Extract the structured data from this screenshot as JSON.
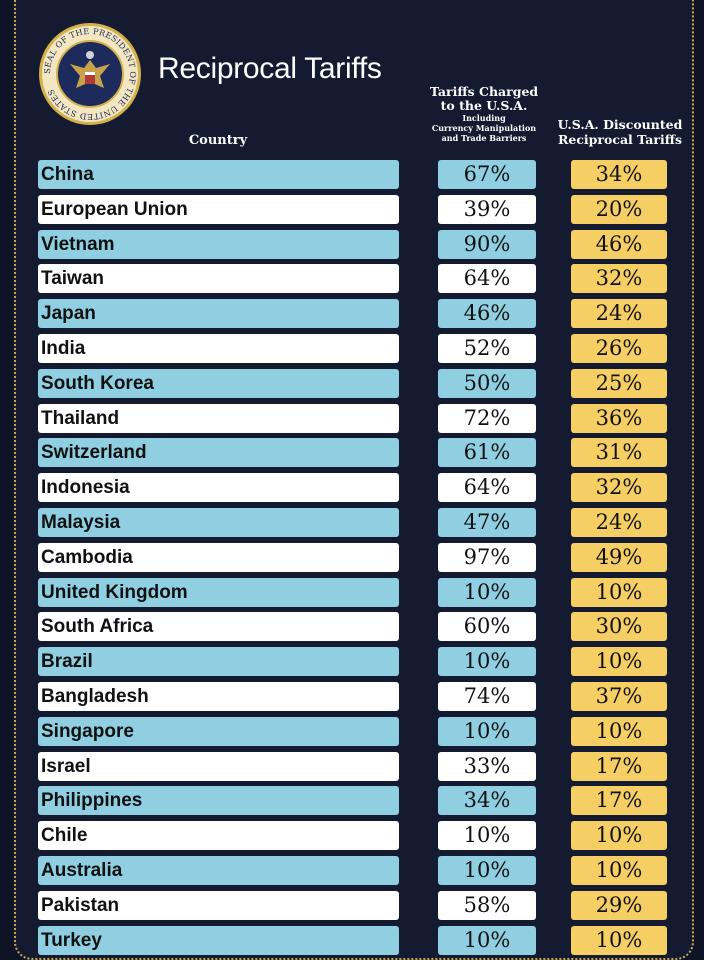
{
  "title": "Reciprocal Tariffs",
  "seal": {
    "ring_text": "SEAL OF THE PRESIDENT OF THE UNITED STATES",
    "colors": {
      "ring": "#d4b04a",
      "inner": "#1d2a5c",
      "eagle": "#c8a24a"
    }
  },
  "headers": {
    "country": "Country",
    "charged_line1": "Tariffs Charged",
    "charged_line2": "to the U.S.A.",
    "charged_sub1": "Including",
    "charged_sub2": "Currency Manipulation",
    "charged_sub3": "and Trade Barriers",
    "discounted_line1": "U.S.A. Discounted",
    "discounted_line2": "Reciprocal Tariffs"
  },
  "colors": {
    "background": "#141b30",
    "row_blue": "#8fcfe1",
    "row_white": "#ffffff",
    "discount_cell": "#f5cf63",
    "border_dots": "#c9a84a"
  },
  "chart_data": {
    "type": "table",
    "columns": [
      "Country",
      "Tariffs Charged to the U.S.A.",
      "U.S.A. Discounted Reciprocal Tariffs"
    ],
    "rows": [
      {
        "country": "China",
        "charged": "67%",
        "discounted": "34%"
      },
      {
        "country": "European Union",
        "charged": "39%",
        "discounted": "20%"
      },
      {
        "country": "Vietnam",
        "charged": "90%",
        "discounted": "46%"
      },
      {
        "country": "Taiwan",
        "charged": "64%",
        "discounted": "32%"
      },
      {
        "country": "Japan",
        "charged": "46%",
        "discounted": "24%"
      },
      {
        "country": "India",
        "charged": "52%",
        "discounted": "26%"
      },
      {
        "country": "South Korea",
        "charged": "50%",
        "discounted": "25%"
      },
      {
        "country": "Thailand",
        "charged": "72%",
        "discounted": "36%"
      },
      {
        "country": "Switzerland",
        "charged": "61%",
        "discounted": "31%"
      },
      {
        "country": "Indonesia",
        "charged": "64%",
        "discounted": "32%"
      },
      {
        "country": "Malaysia",
        "charged": "47%",
        "discounted": "24%"
      },
      {
        "country": "Cambodia",
        "charged": "97%",
        "discounted": "49%"
      },
      {
        "country": "United Kingdom",
        "charged": "10%",
        "discounted": "10%"
      },
      {
        "country": "South Africa",
        "charged": "60%",
        "discounted": "30%"
      },
      {
        "country": "Brazil",
        "charged": "10%",
        "discounted": "10%"
      },
      {
        "country": "Bangladesh",
        "charged": "74%",
        "discounted": "37%"
      },
      {
        "country": "Singapore",
        "charged": "10%",
        "discounted": "10%"
      },
      {
        "country": "Israel",
        "charged": "33%",
        "discounted": "17%"
      },
      {
        "country": "Philippines",
        "charged": "34%",
        "discounted": "17%"
      },
      {
        "country": "Chile",
        "charged": "10%",
        "discounted": "10%"
      },
      {
        "country": "Australia",
        "charged": "10%",
        "discounted": "10%"
      },
      {
        "country": "Pakistan",
        "charged": "58%",
        "discounted": "29%"
      },
      {
        "country": "Turkey",
        "charged": "10%",
        "discounted": "10%"
      }
    ]
  }
}
